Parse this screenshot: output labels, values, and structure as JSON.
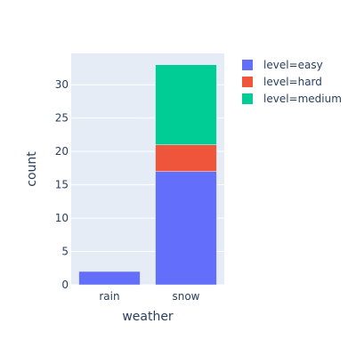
{
  "chart_data": {
    "type": "bar",
    "barmode": "stack",
    "categories": [
      "rain",
      "snow"
    ],
    "series": [
      {
        "name": "level=easy",
        "values": [
          2,
          17
        ],
        "color": "#636efa"
      },
      {
        "name": "level=hard",
        "values": [
          0,
          4
        ],
        "color": "#ef553b"
      },
      {
        "name": "level=medium",
        "values": [
          0,
          12
        ],
        "color": "#00cc96"
      }
    ],
    "xlabel": "weather",
    "ylabel": "count",
    "ylim": [
      0,
      34.7
    ],
    "yticks": [
      0,
      5,
      10,
      15,
      20,
      25,
      30
    ],
    "grid": true,
    "legend_position": "right",
    "colors": {
      "plot_background": "#e5ecf6",
      "grid": "#ffffff",
      "text": "#2a3f5f"
    }
  }
}
